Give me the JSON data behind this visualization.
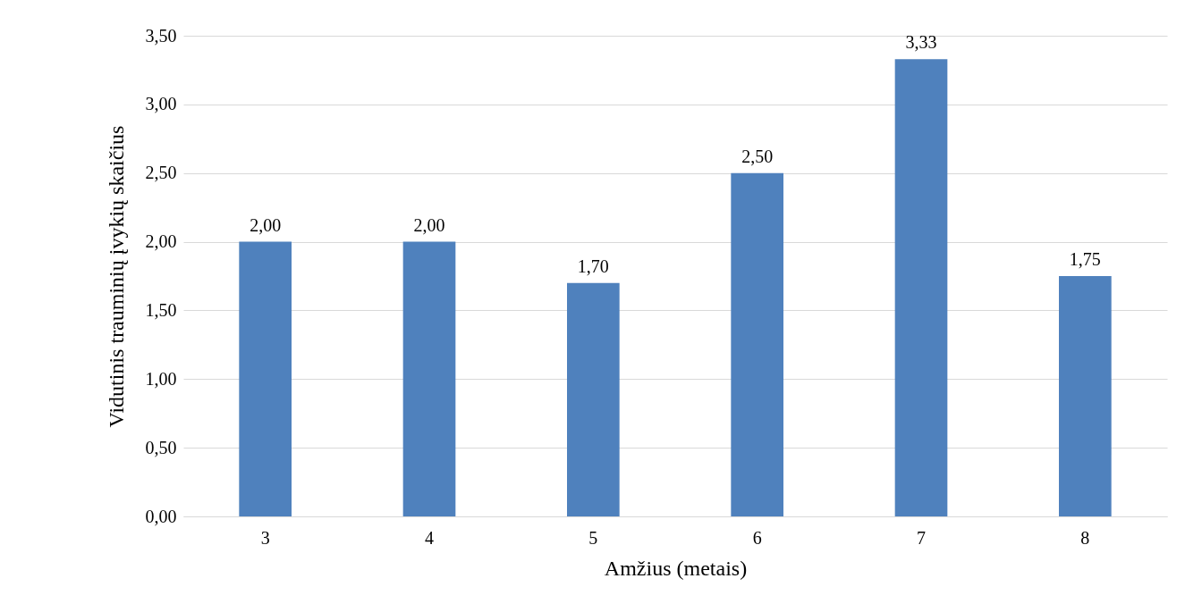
{
  "chart_data": {
    "type": "bar",
    "xlabel": "Amžius (metais)",
    "ylabel": "Vidutinis trauminių įvykių skaičius",
    "categories": [
      "3",
      "4",
      "5",
      "6",
      "7",
      "8"
    ],
    "values": [
      2.0,
      2.0,
      1.7,
      2.5,
      3.33,
      1.75
    ],
    "value_labels": [
      "2,00",
      "2,00",
      "1,70",
      "2,50",
      "3,33",
      "1,75"
    ],
    "color": "#4f81bd",
    "ylim": [
      0,
      3.5
    ],
    "yticks": [
      {
        "value": 0,
        "label": "0,00"
      },
      {
        "value": 0.5,
        "label": "0,50"
      },
      {
        "value": 1,
        "label": "1,00"
      },
      {
        "value": 1.5,
        "label": "1,50"
      },
      {
        "value": 2,
        "label": "2,00"
      },
      {
        "value": 2.5,
        "label": "2,50"
      },
      {
        "value": 3,
        "label": "3,00"
      },
      {
        "value": 3.5,
        "label": "3,50"
      }
    ],
    "grid": "y"
  }
}
